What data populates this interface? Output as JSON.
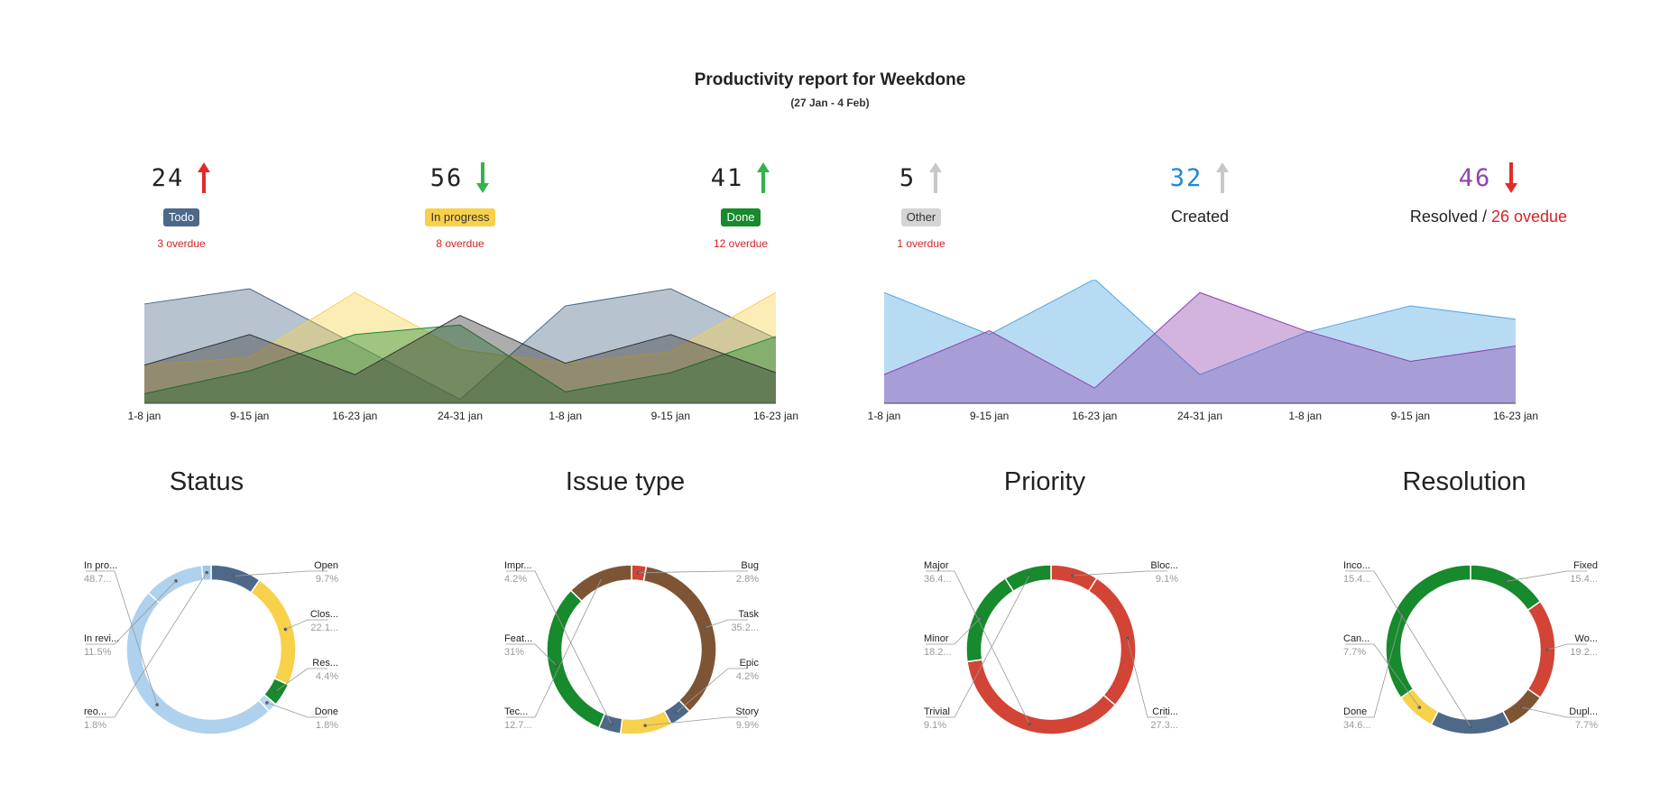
{
  "header": {
    "title": "Productivity report for Weekdone",
    "subtitle": "(27 Jan - 4 Feb)"
  },
  "kpis": [
    {
      "id": "todo",
      "value": "24",
      "trend": "up",
      "arrow_color": "#e32b2b",
      "label": "Todo",
      "label_style": "badge",
      "badge_bg": "#4d6889",
      "badge_fg": "#ffffff",
      "overdue": "3 overdue"
    },
    {
      "id": "inprogress",
      "value": "56",
      "trend": "down",
      "arrow_color": "#34b34a",
      "label": "In progress",
      "label_style": "badge",
      "badge_bg": "#f7d14a",
      "badge_fg": "#333333",
      "overdue": "8 overdue"
    },
    {
      "id": "done",
      "value": "41",
      "trend": "up",
      "arrow_color": "#34b34a",
      "label": "Done",
      "label_style": "badge",
      "badge_bg": "#168a2c",
      "badge_fg": "#ffffff",
      "overdue": "12 overdue"
    },
    {
      "id": "other",
      "value": "5",
      "trend": "up",
      "arrow_color": "#c8c8c8",
      "label": "Other",
      "label_style": "badge",
      "badge_bg": "#d4d4d4",
      "badge_fg": "#333333",
      "overdue": "1 overdue"
    },
    {
      "id": "created",
      "value": "32",
      "value_color": "#1e88d6",
      "trend": "up",
      "arrow_color": "#c8c8c8",
      "label": "Created",
      "label_style": "text"
    },
    {
      "id": "resolved",
      "value": "46",
      "value_color": "#8e44ad",
      "trend": "down",
      "arrow_color": "#e32b2b",
      "label": "Resolved",
      "label_style": "text",
      "separator": " / ",
      "overdue_inline": "26 ovedue"
    }
  ],
  "section_titles": {
    "status": "Status",
    "issue_type": "Issue type",
    "priority": "Priority",
    "resolution": "Resolution"
  },
  "chart_data": [
    {
      "type": "area",
      "id": "status-trend",
      "categories": [
        "1-8 jan",
        "9-15 jan",
        "16-23 jan",
        "24-31 jan",
        "1-8 jan",
        "9-15 jan",
        "16-23 jan"
      ],
      "ylim": [
        0,
        60
      ],
      "series": [
        {
          "color": "#4d6889",
          "values": [
            52,
            60,
            31,
            2,
            51,
            60,
            34
          ]
        },
        {
          "color": "#f7d14a",
          "values": [
            20,
            24,
            58,
            28,
            21,
            27,
            58
          ]
        },
        {
          "color": "#168a2c",
          "values": [
            5,
            17,
            36,
            41,
            6,
            16,
            35
          ]
        },
        {
          "color": "#333333",
          "values": [
            20,
            36,
            15,
            46,
            21,
            36,
            16
          ]
        }
      ]
    },
    {
      "type": "area",
      "id": "created-resolved-trend",
      "categories": [
        "1-8 jan",
        "9-15 jan",
        "16-23 jan",
        "24-31 jan",
        "1-8 jan",
        "9-15 jan",
        "16-23 jan"
      ],
      "ylim": [
        0,
        60
      ],
      "series": [
        {
          "color": "#4ea6e4",
          "values": [
            58,
            36,
            65,
            15,
            37,
            51,
            44
          ]
        },
        {
          "color": "#8e44ad",
          "values": [
            15,
            38,
            8,
            58,
            38,
            22,
            30
          ]
        }
      ]
    },
    {
      "type": "pie",
      "id": "status-donut",
      "title": "Status",
      "slices": [
        {
          "label": "Open",
          "value": 9.7,
          "display": "9.7%",
          "color": "#4d6889",
          "side": "right"
        },
        {
          "label": "Clos...",
          "value": 22.1,
          "display": "22.1...",
          "color": "#f7d14a",
          "side": "right"
        },
        {
          "label": "Res...",
          "value": 4.4,
          "display": "4.4%",
          "color": "#168a2c",
          "side": "right"
        },
        {
          "label": "Done",
          "value": 1.8,
          "display": "1.8%",
          "color": "#b8d8f2",
          "side": "right"
        },
        {
          "label": "In pro...",
          "value": 48.7,
          "display": "48.7...",
          "color": "#aed1ed",
          "side": "left"
        },
        {
          "label": "In revi...",
          "value": 11.5,
          "display": "11.5%",
          "color": "#aed1ed",
          "side": "left"
        },
        {
          "label": "reo...",
          "value": 1.8,
          "display": "1.8%",
          "color": "#9fc8ea",
          "side": "left"
        }
      ]
    },
    {
      "type": "pie",
      "id": "issue-type-donut",
      "title": "Issue type",
      "slices": [
        {
          "label": "Bug",
          "value": 2.8,
          "display": "2.8%",
          "color": "#d24436",
          "side": "right"
        },
        {
          "label": "Task",
          "value": 35.2,
          "display": "35.2...",
          "color": "#7d5535",
          "side": "right"
        },
        {
          "label": "Epic",
          "value": 4.2,
          "display": "4.2%",
          "color": "#4d6889",
          "side": "right"
        },
        {
          "label": "Story",
          "value": 9.9,
          "display": "9.9%",
          "color": "#f7d14a",
          "side": "right"
        },
        {
          "label": "Impr...",
          "value": 4.2,
          "display": "4.2%",
          "color": "#4d6889",
          "side": "left"
        },
        {
          "label": "Feat...",
          "value": 31,
          "display": "31%",
          "color": "#168a2c",
          "side": "left"
        },
        {
          "label": "Tec...",
          "value": 12.7,
          "display": "12.7...",
          "color": "#7d5535",
          "side": "left"
        }
      ]
    },
    {
      "type": "pie",
      "id": "priority-donut",
      "title": "Priority",
      "slices": [
        {
          "label": "Bloc...",
          "value": 9.1,
          "display": "9.1%",
          "color": "#d24436",
          "side": "right"
        },
        {
          "label": "Criti...",
          "value": 27.3,
          "display": "27.3...",
          "color": "#d24436",
          "side": "right"
        },
        {
          "label": "Major",
          "value": 36.4,
          "display": "36.4...",
          "color": "#d24436",
          "side": "left"
        },
        {
          "label": "Minor",
          "value": 18.2,
          "display": "18.2...",
          "color": "#168a2c",
          "side": "left"
        },
        {
          "label": "Trivial",
          "value": 9.1,
          "display": "9.1%",
          "color": "#168a2c",
          "side": "left"
        }
      ]
    },
    {
      "type": "pie",
      "id": "resolution-donut",
      "title": "Resolution",
      "slices": [
        {
          "label": "Fixed",
          "value": 15.4,
          "display": "15.4...",
          "color": "#168a2c",
          "side": "right"
        },
        {
          "label": "Wo...",
          "value": 19.2,
          "display": "19.2...",
          "color": "#d24436",
          "side": "right"
        },
        {
          "label": "Dupl...",
          "value": 7.7,
          "display": "7.7%",
          "color": "#7d5535",
          "side": "right"
        },
        {
          "label": "Inco...",
          "value": 15.4,
          "display": "15.4...",
          "color": "#4d6889",
          "side": "left"
        },
        {
          "label": "Can...",
          "value": 7.7,
          "display": "7.7%",
          "color": "#f7d14a",
          "side": "left"
        },
        {
          "label": "Done",
          "value": 34.6,
          "display": "34.6...",
          "color": "#168a2c",
          "side": "left"
        }
      ]
    }
  ]
}
